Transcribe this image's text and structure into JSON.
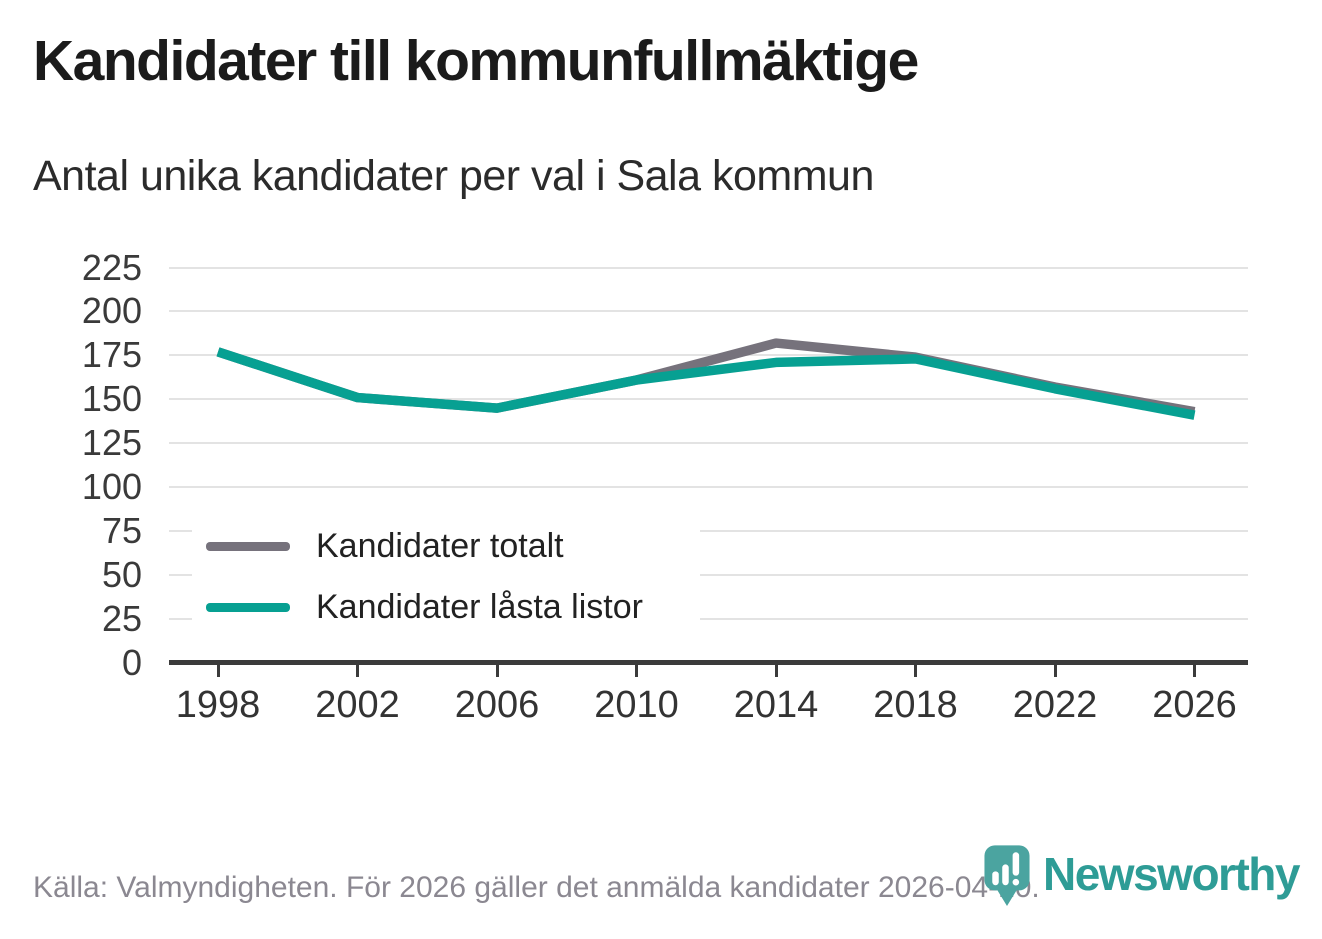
{
  "chart_data": {
    "type": "line",
    "title": "Kandidater till kommunfullmäktige",
    "subtitle": "Antal unika kandidater per val i Sala kommun",
    "x": [
      1998,
      2002,
      2006,
      2010,
      2014,
      2018,
      2022,
      2026
    ],
    "series": [
      {
        "name": "Kandidater totalt",
        "color": "#76727c",
        "values": [
          177,
          151,
          145,
          161,
          182,
          174,
          157,
          143
        ]
      },
      {
        "name": "Kandidater låsta listor",
        "color": "#07a092",
        "values": [
          177,
          151,
          145,
          161,
          171,
          173,
          156,
          141
        ]
      }
    ],
    "xlabel": "",
    "ylabel": "",
    "ylim": [
      0,
      225
    ],
    "ytick_step": 25,
    "grid": true,
    "legend_position": "inside-bottom-left"
  },
  "footer": {
    "source": "Källa: Valmyndigheten. För 2026 gäller det anmälda kandidater 2026-04-10.",
    "logo_text": "Newsworthy"
  },
  "colors": {
    "grid": "#e3e3e3",
    "axis": "#3b3b3b",
    "footer_text": "#8b8891",
    "logo_pin": "#4ba4a0",
    "logo_wordmark": "#2e9c96"
  }
}
